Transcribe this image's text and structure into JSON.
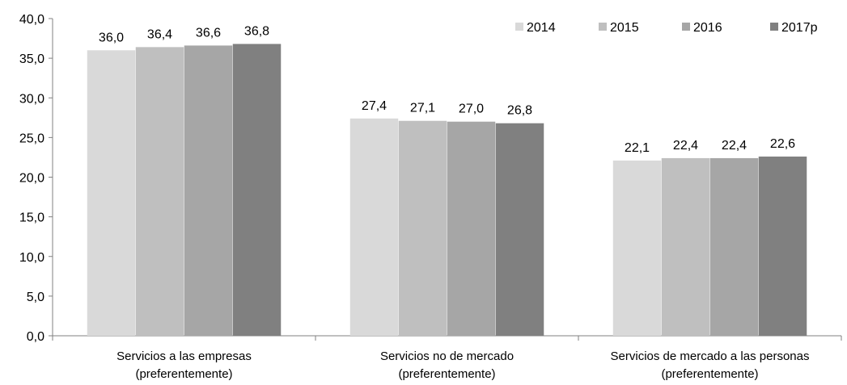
{
  "chart_data": {
    "type": "bar",
    "categories": [
      [
        "Servicios a las empresas",
        "(preferentemente)"
      ],
      [
        "Servicios no de mercado",
        "(preferentemente)"
      ],
      [
        "Servicios de mercado a las personas",
        "(preferentemente)"
      ]
    ],
    "series": [
      {
        "name": "2014",
        "values": [
          36.0,
          27.4,
          22.1
        ],
        "labels": [
          "36,0",
          "27,4",
          "22,1"
        ],
        "color": "#d9d9d9"
      },
      {
        "name": "2015",
        "values": [
          36.4,
          27.1,
          22.4
        ],
        "labels": [
          "36,4",
          "27,1",
          "22,4"
        ],
        "color": "#bfbfbf"
      },
      {
        "name": "2016",
        "values": [
          36.6,
          27.0,
          22.4
        ],
        "labels": [
          "36,6",
          "27,0",
          "22,4"
        ],
        "color": "#a6a6a6"
      },
      {
        "name": "2017p",
        "values": [
          36.8,
          26.8,
          22.6
        ],
        "labels": [
          "36,8",
          "26,8",
          "22,6"
        ],
        "color": "#808080"
      }
    ],
    "y_ticks": [
      "0,0",
      "5,0",
      "10,0",
      "15,0",
      "20,0",
      "25,0",
      "30,0",
      "35,0",
      "40,0"
    ],
    "ylim": [
      0,
      40
    ],
    "grid": false,
    "legend_position": "top-right",
    "title": "",
    "xlabel": "",
    "ylabel": ""
  }
}
